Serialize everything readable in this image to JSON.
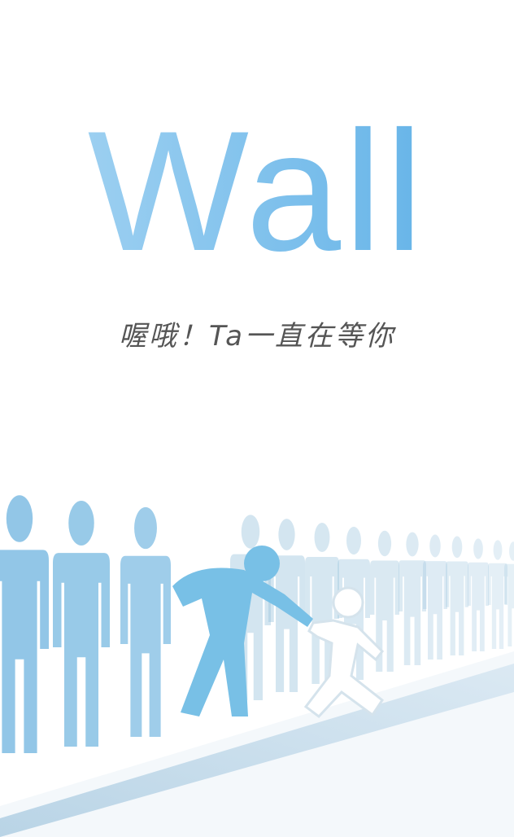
{
  "logo": {
    "text": "Wall"
  },
  "tagline": "喔哦！Ta一直在等你"
}
